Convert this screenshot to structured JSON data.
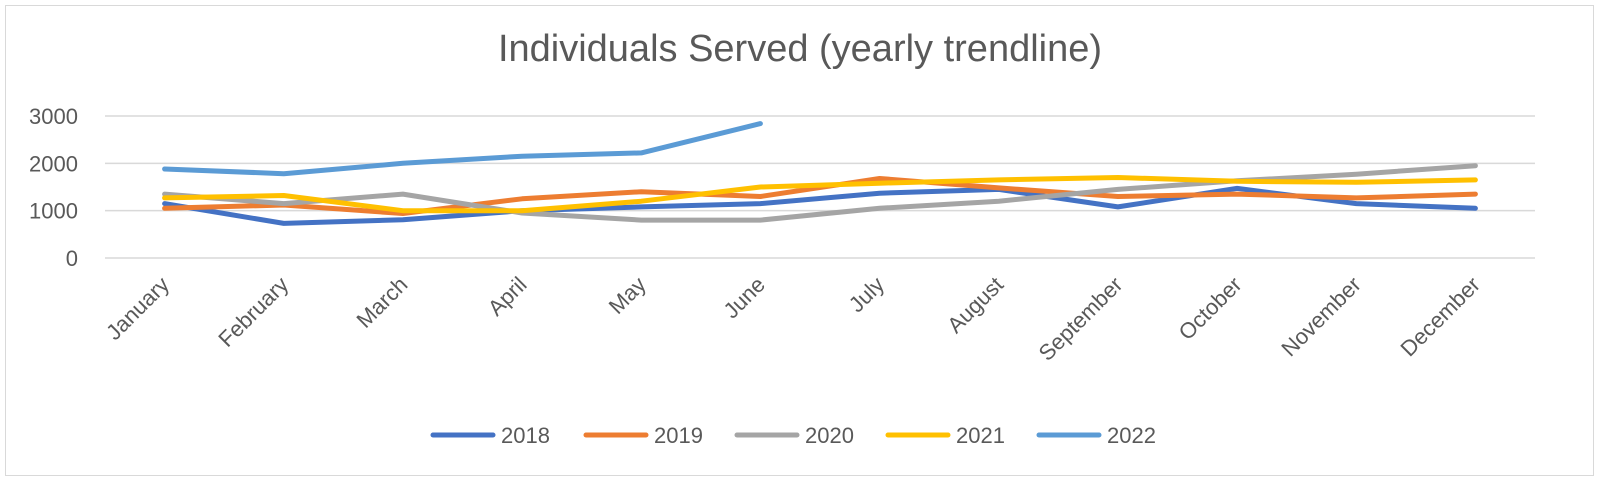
{
  "chart_data": {
    "type": "line",
    "title": "Individuals Served (yearly trendline)",
    "xlabel": "",
    "ylabel": "",
    "categories": [
      "January",
      "February",
      "March",
      "April",
      "May",
      "June",
      "July",
      "August",
      "September",
      "October",
      "November",
      "December"
    ],
    "ylim": [
      0,
      3000
    ],
    "yticks": [
      0,
      1000,
      2000,
      3000
    ],
    "grid": true,
    "legend_position": "bottom",
    "series": [
      {
        "name": "2018",
        "color": "#4472c4",
        "values": [
          1150,
          730,
          810,
          1000,
          1080,
          1150,
          1370,
          1450,
          1080,
          1470,
          1150,
          1050
        ]
      },
      {
        "name": "2019",
        "color": "#ed7d31",
        "values": [
          1050,
          1120,
          940,
          1250,
          1400,
          1300,
          1680,
          1480,
          1300,
          1350,
          1270,
          1350
        ]
      },
      {
        "name": "2020",
        "color": "#a5a5a5",
        "values": [
          1350,
          1150,
          1350,
          950,
          800,
          800,
          1050,
          1200,
          1450,
          1630,
          1770,
          1950
        ]
      },
      {
        "name": "2021",
        "color": "#ffc000",
        "values": [
          1270,
          1320,
          1000,
          1000,
          1200,
          1500,
          1580,
          1650,
          1700,
          1620,
          1600,
          1650
        ]
      },
      {
        "name": "2022",
        "color": "#5b9bd5",
        "values": [
          1880,
          1780,
          2000,
          2150,
          2220,
          2840,
          null,
          null,
          null,
          null,
          null,
          null
        ]
      }
    ]
  }
}
